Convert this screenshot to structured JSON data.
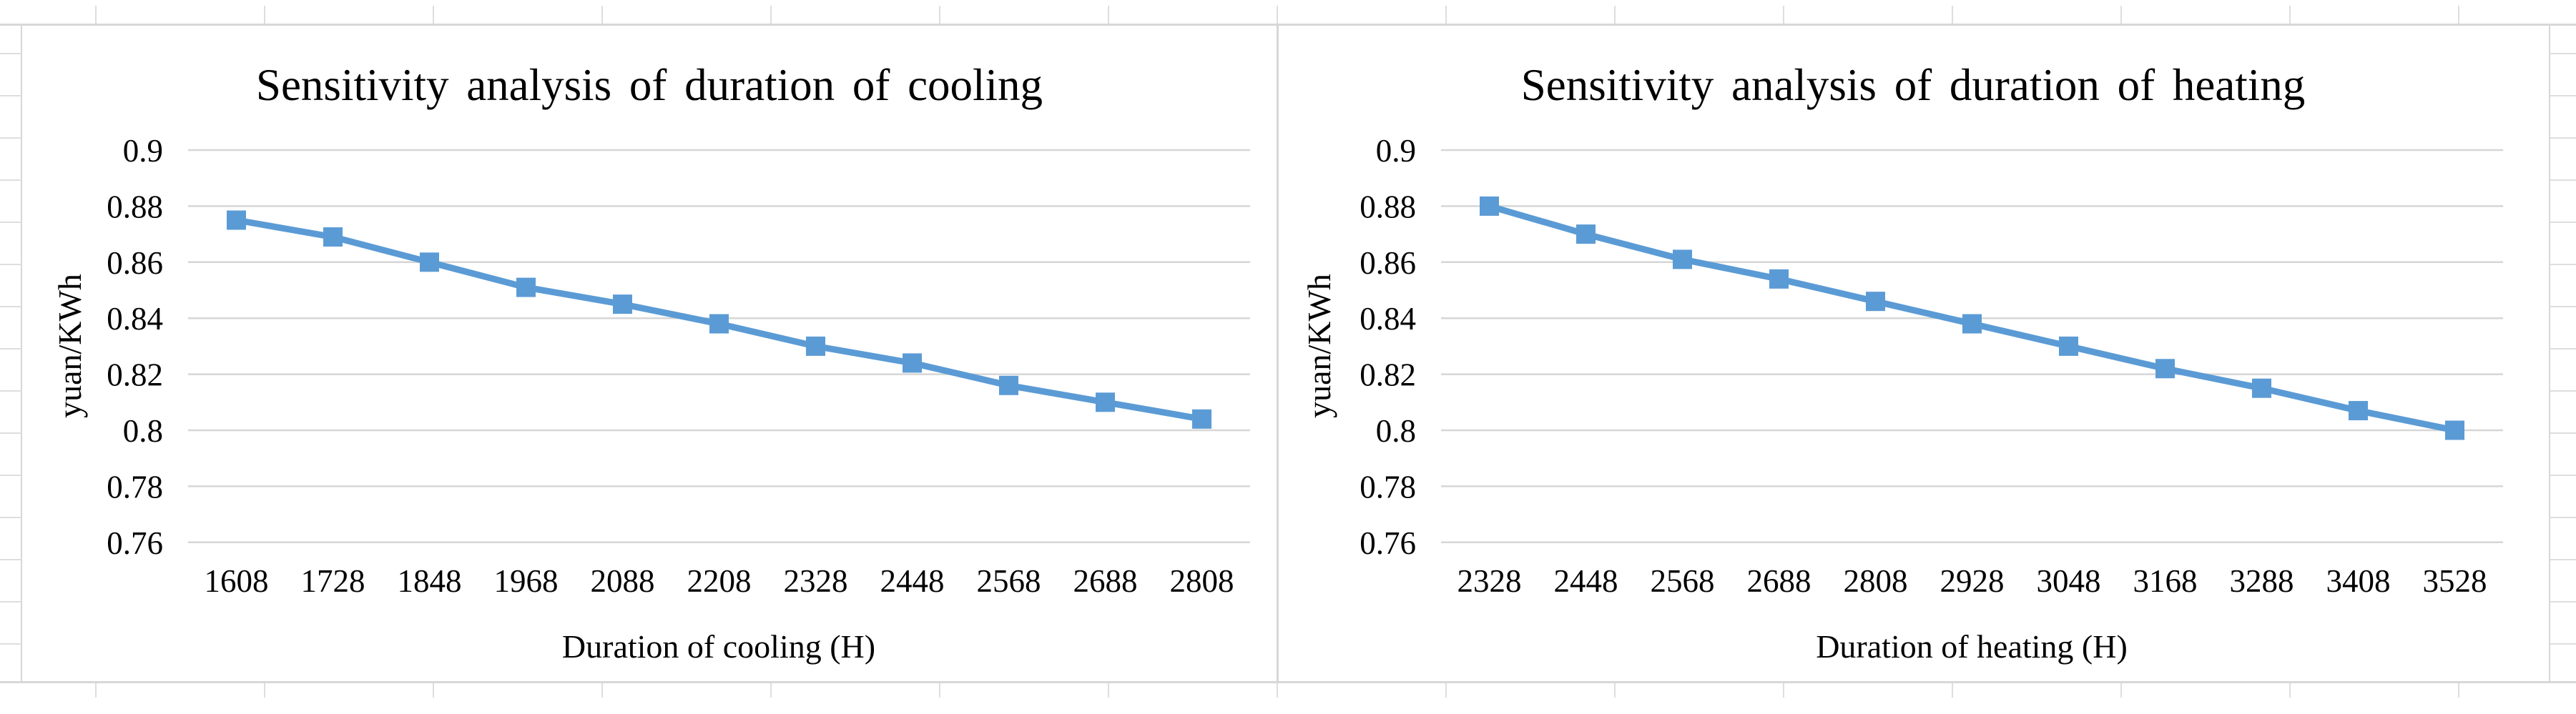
{
  "page": {
    "background": "#ffffff",
    "grid_color": "#d6d6d6",
    "border_color": "#d7d7d7"
  },
  "chart_data": [
    {
      "type": "line",
      "title": "Sensitivity analysis of duration of cooling",
      "xlabel": "Duration of cooling (H)",
      "ylabel": "yuan/KWh",
      "categories": [
        "1608",
        "1728",
        "1848",
        "1968",
        "2088",
        "2208",
        "2328",
        "2448",
        "2568",
        "2688",
        "2808"
      ],
      "values": [
        0.875,
        0.869,
        0.86,
        0.851,
        0.845,
        0.838,
        0.83,
        0.824,
        0.816,
        0.81,
        0.804
      ],
      "ylim": [
        0.76,
        0.9
      ],
      "yticks": [
        "0.9",
        "0.88",
        "0.86",
        "0.84",
        "0.82",
        "0.8",
        "0.78",
        "0.76"
      ],
      "ytick_values": [
        0.9,
        0.88,
        0.86,
        0.84,
        0.82,
        0.8,
        0.78,
        0.76
      ],
      "grid": "horizontal",
      "legend": "none",
      "series_color": "#5b9bd5",
      "marker": "square"
    },
    {
      "type": "line",
      "title": "Sensitivity analysis of duration of heating",
      "xlabel": "Duration of heating (H)",
      "ylabel": "yuan/KWh",
      "categories": [
        "2328",
        "2448",
        "2568",
        "2688",
        "2808",
        "2928",
        "3048",
        "3168",
        "3288",
        "3408",
        "3528"
      ],
      "values": [
        0.88,
        0.87,
        0.861,
        0.854,
        0.846,
        0.838,
        0.83,
        0.822,
        0.815,
        0.807,
        0.8
      ],
      "ylim": [
        0.76,
        0.9
      ],
      "yticks": [
        "0.9",
        "0.88",
        "0.86",
        "0.84",
        "0.82",
        "0.8",
        "0.78",
        "0.76"
      ],
      "ytick_values": [
        0.9,
        0.88,
        0.86,
        0.84,
        0.82,
        0.8,
        0.78,
        0.76
      ],
      "grid": "horizontal",
      "legend": "none",
      "series_color": "#5b9bd5",
      "marker": "square"
    }
  ]
}
